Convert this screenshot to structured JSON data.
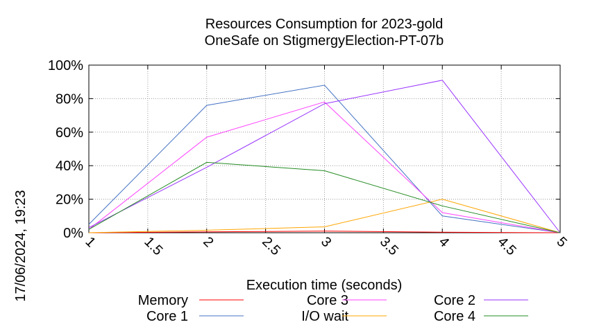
{
  "chart_data": {
    "type": "line",
    "title": "Resources Consumption for 2023-gold",
    "subtitle": "OneSafe on StigmergyElection-PT-07b",
    "xlabel": "Execution time (seconds)",
    "ylabel": "",
    "side_label": "17/06/2024, 19:23",
    "xlim": [
      1,
      5
    ],
    "ylim": [
      0,
      100
    ],
    "x_ticks": [
      "1",
      "1.5",
      "2",
      "2.5",
      "3",
      "3.5",
      "4",
      "4.5",
      "5"
    ],
    "y_ticks": [
      "0%",
      "20%",
      "40%",
      "60%",
      "80%",
      "100%"
    ],
    "grid": true,
    "legend_position": "bottom",
    "x": [
      1,
      2,
      3,
      4,
      5
    ],
    "series": [
      {
        "name": "Memory",
        "color": "#ff0000",
        "values": [
          0,
          0.5,
          1,
          0.3,
          0
        ]
      },
      {
        "name": "Core 1",
        "color": "#4472c4",
        "values": [
          5,
          76,
          88,
          10,
          0
        ]
      },
      {
        "name": "Core 3",
        "color": "#ff44ff",
        "values": [
          2,
          57,
          78,
          12,
          0
        ]
      },
      {
        "name": "I/O wait",
        "color": "#ffa500",
        "values": [
          0,
          1.5,
          3.5,
          20,
          0
        ]
      },
      {
        "name": "Core 2",
        "color": "#9933ff",
        "values": [
          3,
          39,
          77,
          91,
          0
        ]
      },
      {
        "name": "Core 4",
        "color": "#228b22",
        "values": [
          2,
          42,
          37,
          16,
          0
        ]
      }
    ]
  }
}
